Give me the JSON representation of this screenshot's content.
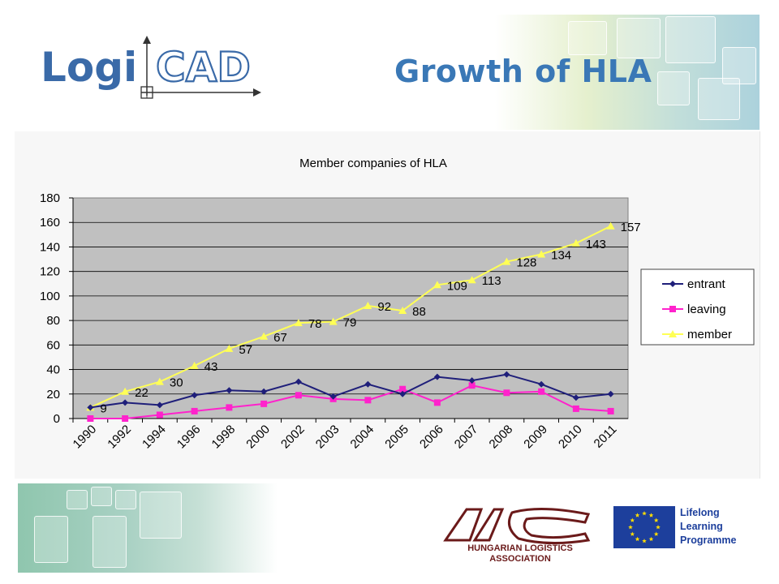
{
  "header": {
    "title": "Growth of HLA",
    "logo_left": "Logi",
    "logo_right": "CAD"
  },
  "footer": {
    "association_name_line1": "HUNGARIAN LOGISTICS",
    "association_name_line2": "ASSOCIATION",
    "programme_line1": "Lifelong",
    "programme_line2": "Learning",
    "programme_line3": "Programme"
  },
  "colors": {
    "title": "#3a78b6",
    "plot_bg": "#c0c0c0",
    "entrant": "#1f1f7a",
    "leaving": "#ff22cc",
    "member": "#ffff55"
  },
  "chart_data": {
    "type": "line",
    "title": "Member companies of HLA",
    "categories": [
      "1990",
      "1992",
      "1994",
      "1996",
      "1998",
      "2000",
      "2002",
      "2003",
      "2004",
      "2005",
      "2006",
      "2007",
      "2008",
      "2009",
      "2010",
      "2011"
    ],
    "ylim": [
      0,
      180
    ],
    "yticks": [
      0,
      20,
      40,
      60,
      80,
      100,
      120,
      140,
      160,
      180
    ],
    "grid": true,
    "legend_position": "right",
    "series": [
      {
        "name": "entrant",
        "marker": "diamond",
        "values": [
          9,
          13,
          11,
          19,
          23,
          22,
          30,
          18,
          28,
          20,
          34,
          31,
          36,
          28,
          17,
          20
        ]
      },
      {
        "name": "leaving",
        "marker": "square",
        "values": [
          0,
          0,
          3,
          6,
          9,
          12,
          19,
          16,
          15,
          24,
          13,
          27,
          21,
          22,
          8,
          6
        ]
      },
      {
        "name": "member",
        "marker": "triangle",
        "values": [
          9,
          22,
          30,
          43,
          57,
          67,
          78,
          79,
          92,
          88,
          109,
          113,
          128,
          134,
          143,
          157
        ],
        "data_labels": [
          "9",
          "22",
          "30",
          "43",
          "57",
          "67",
          "78",
          "79",
          "92",
          "88",
          "109",
          "113",
          "128",
          "134",
          "143",
          "157"
        ]
      }
    ]
  }
}
